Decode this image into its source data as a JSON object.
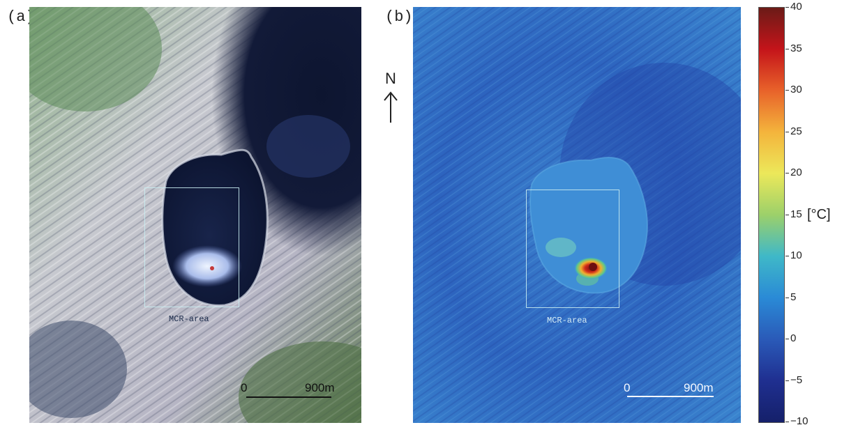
{
  "panel_a": {
    "label": "(a)",
    "roi_label": "MCR-area",
    "scale": {
      "zero": "0",
      "distance": "900m"
    }
  },
  "panel_b": {
    "label": "(b)",
    "roi_label": "MCR-area",
    "scale": {
      "zero": "0",
      "distance": "900m"
    }
  },
  "north": {
    "letter": "N",
    "arrow": "arrow-up"
  },
  "colorbar": {
    "min": -10,
    "max": 40,
    "ticks": [
      "40",
      "35",
      "30",
      "25",
      "20",
      "15",
      "10",
      "5",
      "0",
      "−5",
      "−10"
    ],
    "unit": "[°C]",
    "colors": [
      "#6b1b17",
      "#c4141a",
      "#e8622a",
      "#f4b43c",
      "#ece85a",
      "#9cd06a",
      "#3fb8c8",
      "#2a8ad6",
      "#2a5ab8",
      "#1f2f90",
      "#15206a"
    ]
  }
}
